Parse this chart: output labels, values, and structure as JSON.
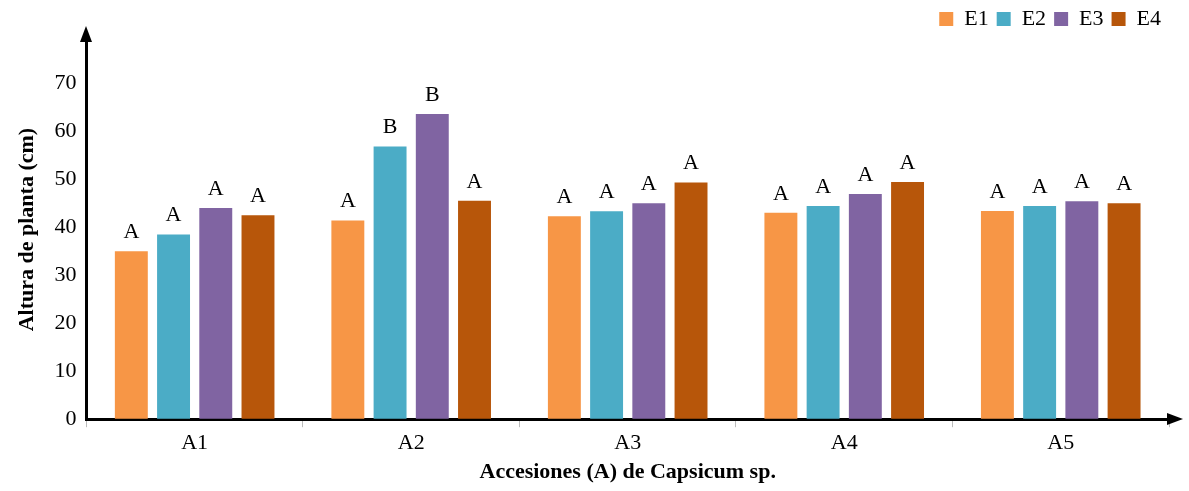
{
  "chart_data": {
    "type": "bar",
    "xlabel": "Accesiones (A) de Capsicum sp.",
    "ylabel": "Altura de planta (cm)",
    "categories": [
      "A1",
      "A2",
      "A3",
      "A4",
      "A5"
    ],
    "series": [
      {
        "name": "E1",
        "color": "#f79646",
        "values": [
          35.0,
          41.4,
          42.3,
          43.0,
          43.4
        ],
        "value_labels": [
          "A",
          "A",
          "A",
          "A",
          "A"
        ]
      },
      {
        "name": "E2",
        "color": "#4bacc6",
        "values": [
          38.5,
          56.8,
          43.3,
          44.4,
          44.4
        ],
        "value_labels": [
          "A",
          "B",
          "A",
          "A",
          "A"
        ]
      },
      {
        "name": "E3",
        "color": "#8064a2",
        "values": [
          44.0,
          63.6,
          45.0,
          46.9,
          45.4
        ],
        "value_labels": [
          "A",
          "B",
          "A",
          "A",
          "A"
        ]
      },
      {
        "name": "E4",
        "color": "#b7560a",
        "values": [
          42.5,
          45.5,
          49.3,
          49.4,
          45.0
        ],
        "value_labels": [
          "A",
          "A",
          "A",
          "A",
          "A"
        ]
      }
    ],
    "ylim": [
      0,
      79
    ],
    "yticks": [
      0,
      10,
      20,
      30,
      40,
      50,
      60,
      70
    ],
    "grid": false,
    "legend": "top right"
  }
}
